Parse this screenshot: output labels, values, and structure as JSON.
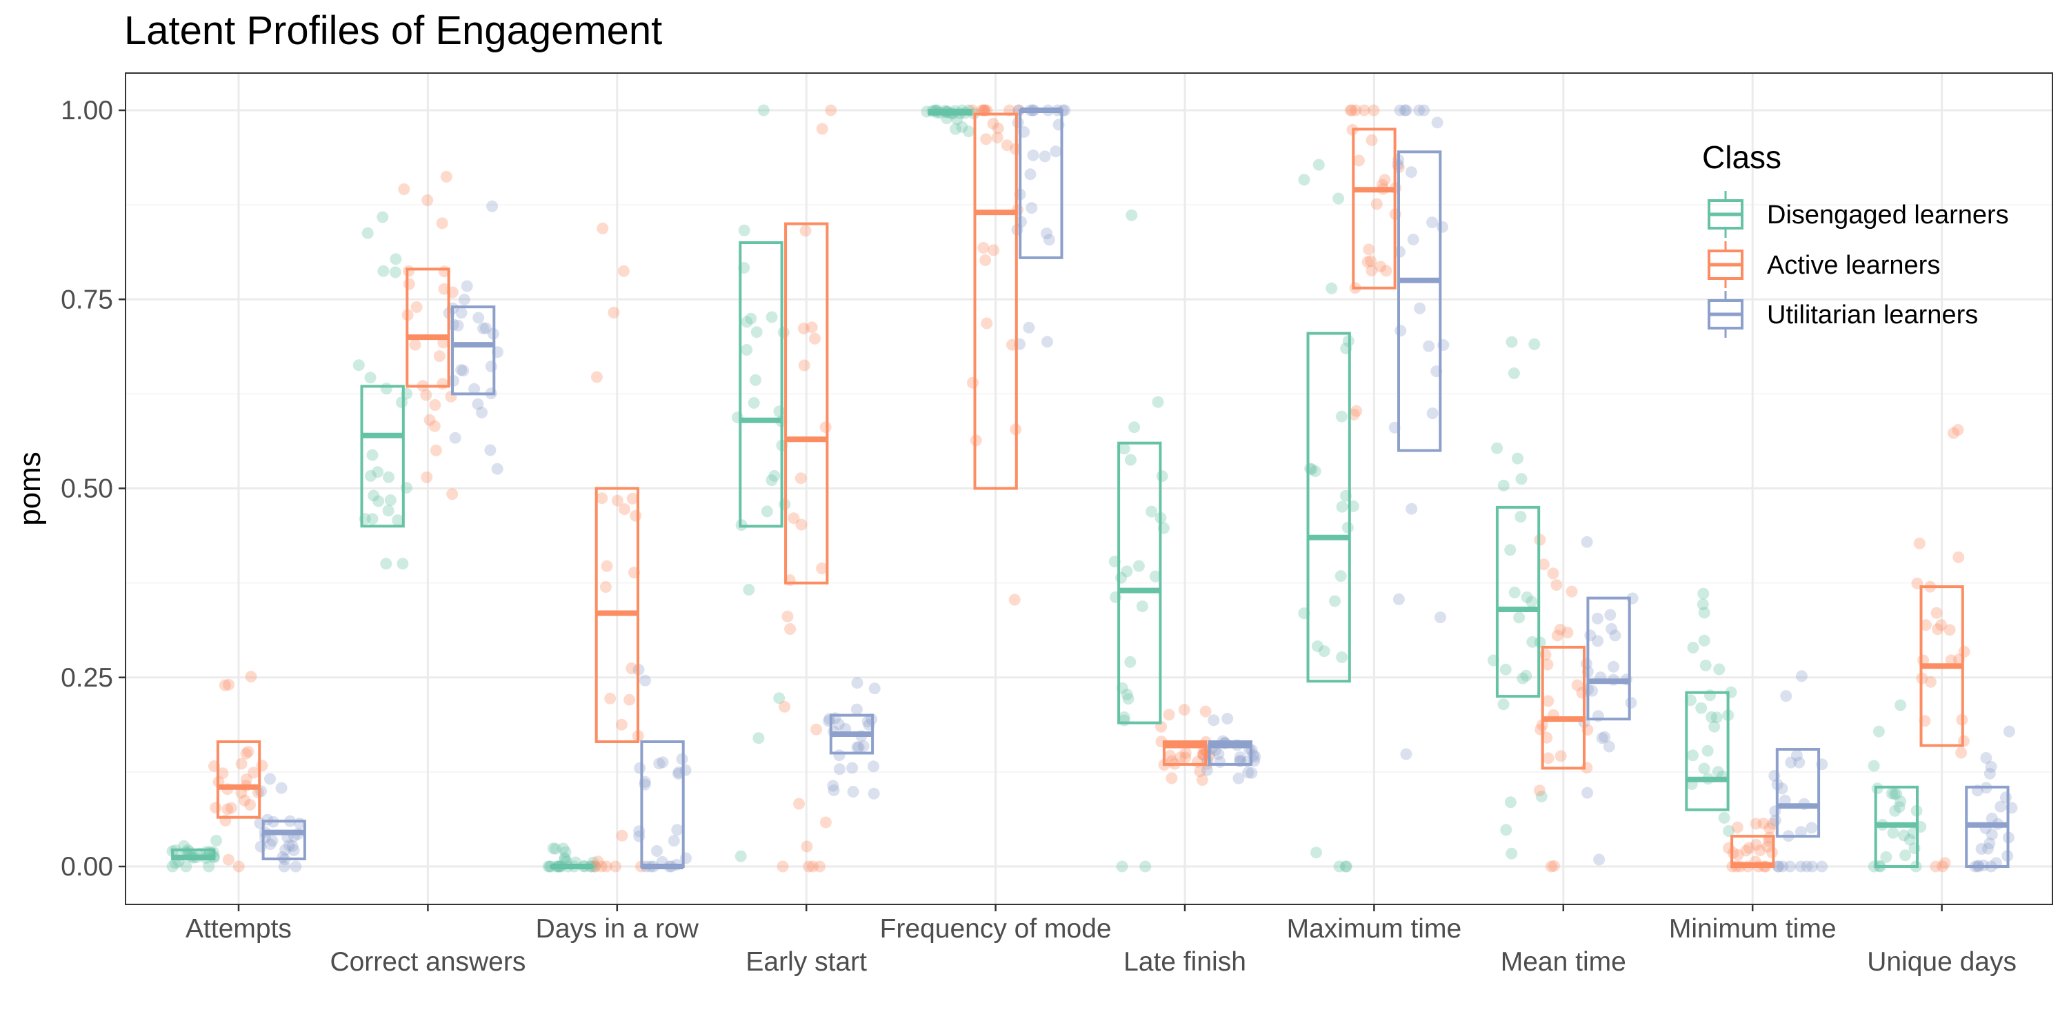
{
  "chart_data": {
    "type": "boxplot-jitter",
    "title": "Latent Profiles of Engagement",
    "xlabel": "",
    "ylabel": "poms",
    "ylim": [
      -0.05,
      1.05
    ],
    "yticks": [
      0,
      0.25,
      0.5,
      0.75,
      1
    ],
    "ytick_labels": [
      "0.00",
      "0.25",
      "0.50",
      "0.75",
      "1.00"
    ],
    "grid": true,
    "legend": {
      "title": "Class",
      "position": "top-right"
    },
    "categories": [
      "Attempts",
      "Correct answers",
      "Days in a row",
      "Early start",
      "Frequency of mode",
      "Late finish",
      "Maximum time",
      "Mean time",
      "Minimum time",
      "Unique days"
    ],
    "series": [
      {
        "name": "Disengaged learners",
        "color": "#66c2a5",
        "boxes": [
          {
            "q1": 0.01,
            "median": 0.012,
            "q3": 0.022
          },
          {
            "q1": 0.45,
            "median": 0.57,
            "q3": 0.635
          },
          {
            "q1": 0.0,
            "median": 0.0,
            "q3": 0.0
          },
          {
            "q1": 0.45,
            "median": 0.59,
            "q3": 0.825
          },
          {
            "q1": 0.995,
            "median": 0.998,
            "q3": 1.0
          },
          {
            "q1": 0.19,
            "median": 0.365,
            "q3": 0.56
          },
          {
            "q1": 0.245,
            "median": 0.435,
            "q3": 0.705
          },
          {
            "q1": 0.225,
            "median": 0.34,
            "q3": 0.475
          },
          {
            "q1": 0.075,
            "median": 0.115,
            "q3": 0.23
          },
          {
            "q1": 0.0,
            "median": 0.055,
            "q3": 0.105
          }
        ]
      },
      {
        "name": "Active learners",
        "color": "#fc8d62",
        "boxes": [
          {
            "q1": 0.065,
            "median": 0.105,
            "q3": 0.165
          },
          {
            "q1": 0.635,
            "median": 0.7,
            "q3": 0.79
          },
          {
            "q1": 0.165,
            "median": 0.335,
            "q3": 0.5
          },
          {
            "q1": 0.375,
            "median": 0.565,
            "q3": 0.85
          },
          {
            "q1": 0.5,
            "median": 0.865,
            "q3": 0.995
          },
          {
            "q1": 0.135,
            "median": 0.16,
            "q3": 0.165
          },
          {
            "q1": 0.765,
            "median": 0.895,
            "q3": 0.975
          },
          {
            "q1": 0.13,
            "median": 0.195,
            "q3": 0.29
          },
          {
            "q1": 0.0,
            "median": 0.002,
            "q3": 0.04
          },
          {
            "q1": 0.16,
            "median": 0.265,
            "q3": 0.37
          }
        ]
      },
      {
        "name": "Utilitarian learners",
        "color": "#8da0cb",
        "boxes": [
          {
            "q1": 0.01,
            "median": 0.045,
            "q3": 0.06
          },
          {
            "q1": 0.625,
            "median": 0.69,
            "q3": 0.74
          },
          {
            "q1": 0.0,
            "median": 0.0,
            "q3": 0.165
          },
          {
            "q1": 0.15,
            "median": 0.175,
            "q3": 0.2
          },
          {
            "q1": 0.805,
            "median": 1.0,
            "q3": 1.0
          },
          {
            "q1": 0.135,
            "median": 0.16,
            "q3": 0.165
          },
          {
            "q1": 0.55,
            "median": 0.775,
            "q3": 0.945
          },
          {
            "q1": 0.195,
            "median": 0.245,
            "q3": 0.355
          },
          {
            "q1": 0.04,
            "median": 0.08,
            "q3": 0.155
          },
          {
            "q1": 0.0,
            "median": 0.055,
            "q3": 0.105
          }
        ]
      }
    ]
  }
}
